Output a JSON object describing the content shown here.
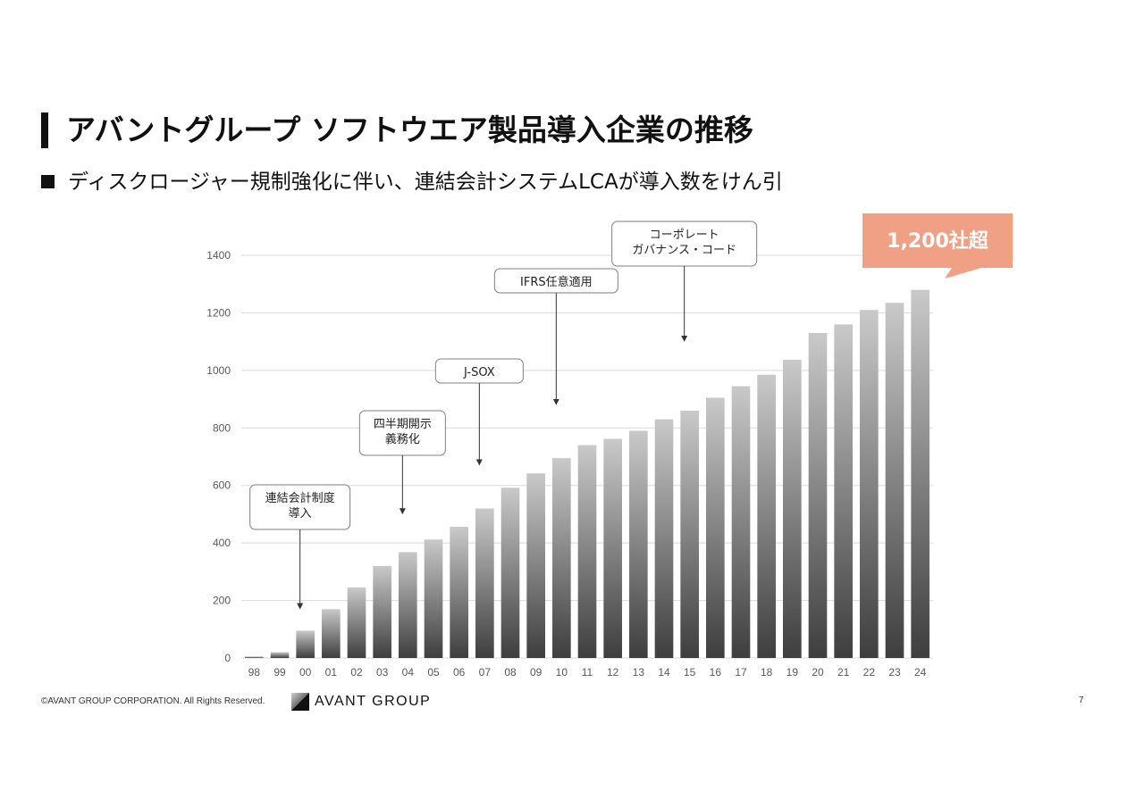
{
  "slide": {
    "title": "アバントグループ ソフトウエア製品導入企業の推移",
    "subtitle": "ディスクロージャー規制強化に伴い、連結会計システムLCAが導入数をけん引",
    "footer_copyright": "©AVANT GROUP CORPORATION. All Rights Reserved.",
    "logo_text": "AVANT GROUP",
    "page_number": "7"
  },
  "chart_data": {
    "type": "bar",
    "categories": [
      "98",
      "99",
      "00",
      "01",
      "02",
      "03",
      "04",
      "05",
      "06",
      "07",
      "08",
      "09",
      "10",
      "11",
      "12",
      "13",
      "14",
      "15",
      "16",
      "17",
      "18",
      "19",
      "20",
      "21",
      "22",
      "23",
      "24"
    ],
    "values": [
      5,
      20,
      95,
      170,
      245,
      320,
      368,
      412,
      456,
      520,
      592,
      642,
      695,
      740,
      762,
      790,
      830,
      860,
      905,
      945,
      985,
      1037,
      1130,
      1160,
      1210,
      1235,
      1280
    ],
    "ylim": [
      0,
      1400
    ],
    "yticks": [
      0,
      200,
      400,
      600,
      800,
      1000,
      1200,
      1400
    ],
    "grid": true,
    "callout": {
      "text": "1,200社超",
      "color": "#f0a084"
    },
    "annotations": [
      {
        "lines": [
          "連結会計制度",
          "導入"
        ],
        "x": "00",
        "arrow_to": 180
      },
      {
        "lines": [
          "四半期開示",
          "義務化"
        ],
        "x": "04",
        "arrow_to": 510
      },
      {
        "lines": [
          "J-SOX"
        ],
        "x": "07",
        "arrow_to": 680
      },
      {
        "lines": [
          "IFRS任意適用"
        ],
        "x": "10",
        "arrow_to": 890
      },
      {
        "lines": [
          "コーポレート",
          "ガバナンス・コード"
        ],
        "x": "15",
        "arrow_to": 1110
      }
    ]
  }
}
